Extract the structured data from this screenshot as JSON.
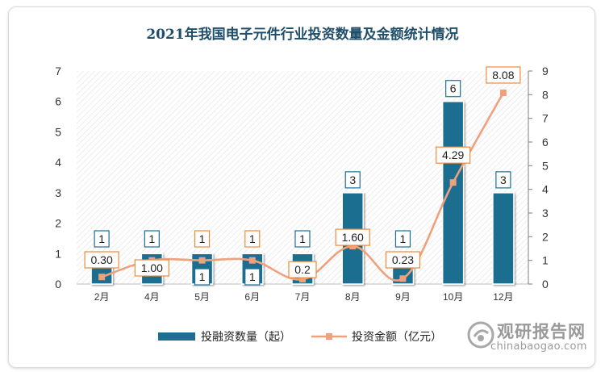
{
  "chart_data": {
    "type": "bar+line",
    "title": "2021年我国电子元件行业投资数量及金额统计情况",
    "categories": [
      "2月",
      "4月",
      "5月",
      "6月",
      "7月",
      "8月",
      "9月",
      "10月",
      "12月"
    ],
    "series": [
      {
        "name": "投融资数量（起）",
        "type": "bar",
        "axis": "left",
        "color": "#1f6e91",
        "values": [
          1,
          1,
          1,
          1,
          1,
          3,
          1,
          6,
          3
        ],
        "labels": [
          "1",
          "1",
          "1",
          "1",
          "1",
          "3",
          "1",
          "6",
          "3"
        ]
      },
      {
        "name": "投资金额（亿元）",
        "type": "line",
        "axis": "right",
        "color": "#f0a07c",
        "values": [
          0.3,
          1.0,
          1.0,
          1.0,
          0.2,
          1.6,
          0.23,
          4.29,
          8.08
        ],
        "labels": [
          "0.30",
          "1.00",
          "1",
          "1",
          "0.2",
          "1.60",
          "0.23",
          "4.29",
          "8.08"
        ]
      }
    ],
    "y_left": {
      "min": 0,
      "max": 7,
      "ticks": [
        "0",
        "1",
        "2",
        "3",
        "4",
        "5",
        "6",
        "7"
      ]
    },
    "y_right": {
      "min": 0,
      "max": 9,
      "ticks": [
        "0",
        "1",
        "2",
        "3",
        "4",
        "5",
        "6",
        "7",
        "8",
        "9"
      ]
    },
    "grid": false,
    "legend_position": "bottom"
  },
  "watermark": {
    "cn": "观研报告网",
    "en": "chinabaogao.com"
  }
}
